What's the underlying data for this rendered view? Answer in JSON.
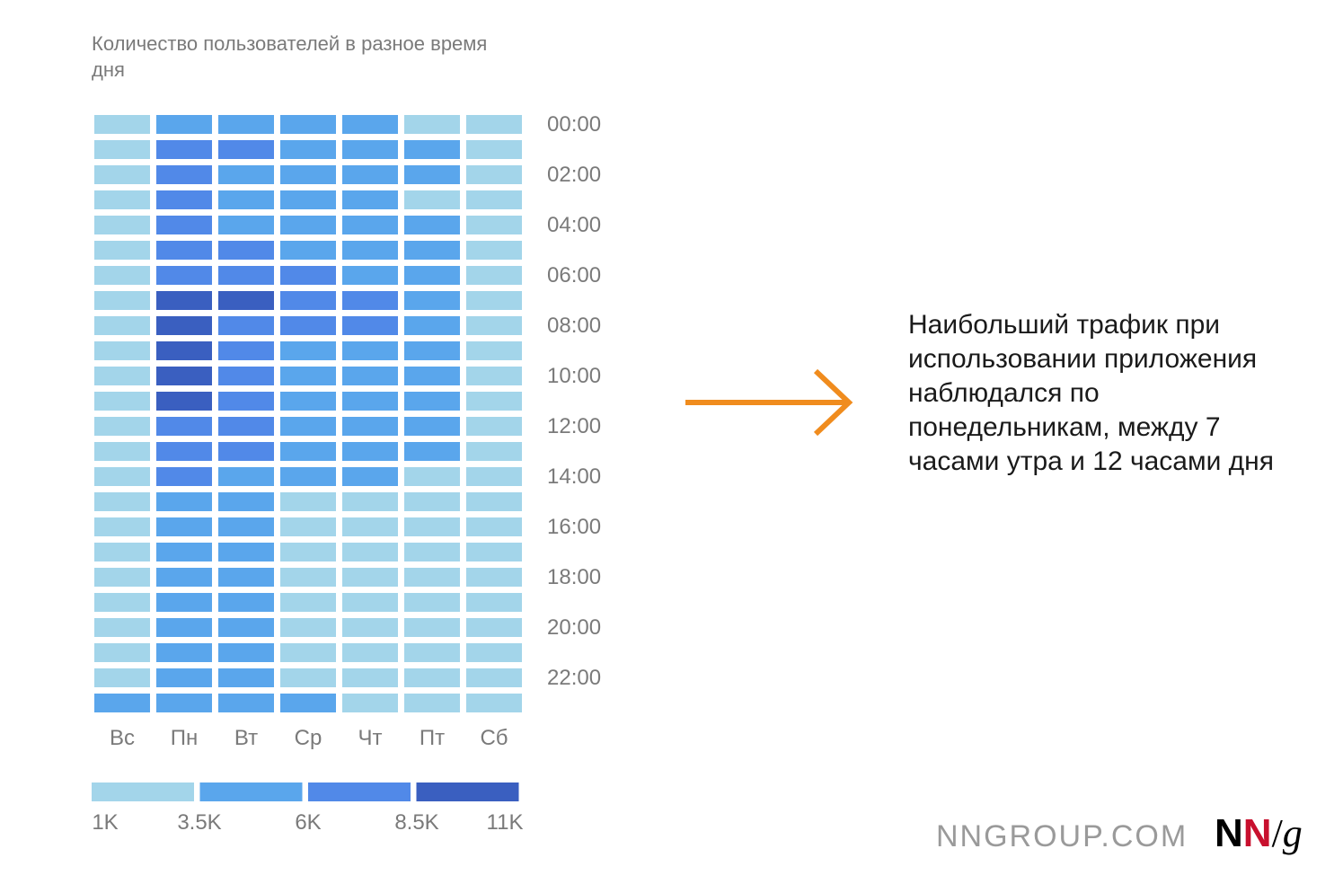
{
  "title": "Количество пользователей в разное время дня",
  "annotation": "Наибольший трафик при использовании приложения наблюдался по понедельникам, между 7 часами утра и 12 часами дня",
  "brand": {
    "site": "NNGROUP.COM",
    "logo_n1": "N",
    "logo_n2": "N",
    "logo_slash": "/",
    "logo_g": "g"
  },
  "colors": {
    "level_1": "#a3d5ea",
    "level_2": "#5aa6ec",
    "level_3": "#5189e8",
    "level_4": "#3a5fc0",
    "arrow": "#f08c1e"
  },
  "chart_data": {
    "type": "heatmap",
    "title": "Количество пользователей в разное время дня",
    "x_categories": [
      "Вс",
      "Пн",
      "Вт",
      "Ср",
      "Чт",
      "Пт",
      "Сб"
    ],
    "y_categories": [
      "00:00",
      "01:00",
      "02:00",
      "03:00",
      "04:00",
      "05:00",
      "06:00",
      "07:00",
      "08:00",
      "09:00",
      "10:00",
      "11:00",
      "12:00",
      "13:00",
      "14:00",
      "15:00",
      "16:00",
      "17:00",
      "18:00",
      "19:00",
      "20:00",
      "21:00",
      "22:00",
      "23:00"
    ],
    "y_tick_labels": [
      "00:00",
      "02:00",
      "04:00",
      "06:00",
      "08:00",
      "10:00",
      "12:00",
      "14:00",
      "16:00",
      "18:00",
      "20:00",
      "22:00"
    ],
    "levels": [
      [
        1,
        2,
        2,
        2,
        2,
        1,
        1
      ],
      [
        1,
        3,
        3,
        2,
        2,
        2,
        1
      ],
      [
        1,
        3,
        2,
        2,
        2,
        2,
        1
      ],
      [
        1,
        3,
        2,
        2,
        2,
        1,
        1
      ],
      [
        1,
        3,
        2,
        2,
        2,
        2,
        1
      ],
      [
        1,
        3,
        3,
        2,
        2,
        2,
        1
      ],
      [
        1,
        3,
        3,
        3,
        2,
        2,
        1
      ],
      [
        1,
        4,
        4,
        3,
        3,
        2,
        1
      ],
      [
        1,
        4,
        3,
        3,
        3,
        2,
        1
      ],
      [
        1,
        4,
        3,
        2,
        2,
        2,
        1
      ],
      [
        1,
        4,
        3,
        2,
        2,
        2,
        1
      ],
      [
        1,
        4,
        3,
        2,
        2,
        2,
        1
      ],
      [
        1,
        3,
        3,
        2,
        2,
        2,
        1
      ],
      [
        1,
        3,
        3,
        2,
        2,
        2,
        1
      ],
      [
        1,
        3,
        2,
        2,
        2,
        1,
        1
      ],
      [
        1,
        2,
        2,
        1,
        1,
        1,
        1
      ],
      [
        1,
        2,
        2,
        1,
        1,
        1,
        1
      ],
      [
        1,
        2,
        2,
        1,
        1,
        1,
        1
      ],
      [
        1,
        2,
        2,
        1,
        1,
        1,
        1
      ],
      [
        1,
        2,
        2,
        1,
        1,
        1,
        1
      ],
      [
        1,
        2,
        2,
        1,
        1,
        1,
        1
      ],
      [
        1,
        2,
        2,
        1,
        1,
        1,
        1
      ],
      [
        1,
        2,
        2,
        1,
        1,
        1,
        1
      ],
      [
        2,
        2,
        2,
        2,
        1,
        1,
        1
      ]
    ],
    "legend": {
      "tick_labels": [
        "1K",
        "3.5K",
        "6K",
        "8.5K",
        "11K"
      ],
      "bins": [
        [
          1000,
          3500
        ],
        [
          3500,
          6000
        ],
        [
          6000,
          8500
        ],
        [
          8500,
          11000
        ]
      ]
    }
  }
}
